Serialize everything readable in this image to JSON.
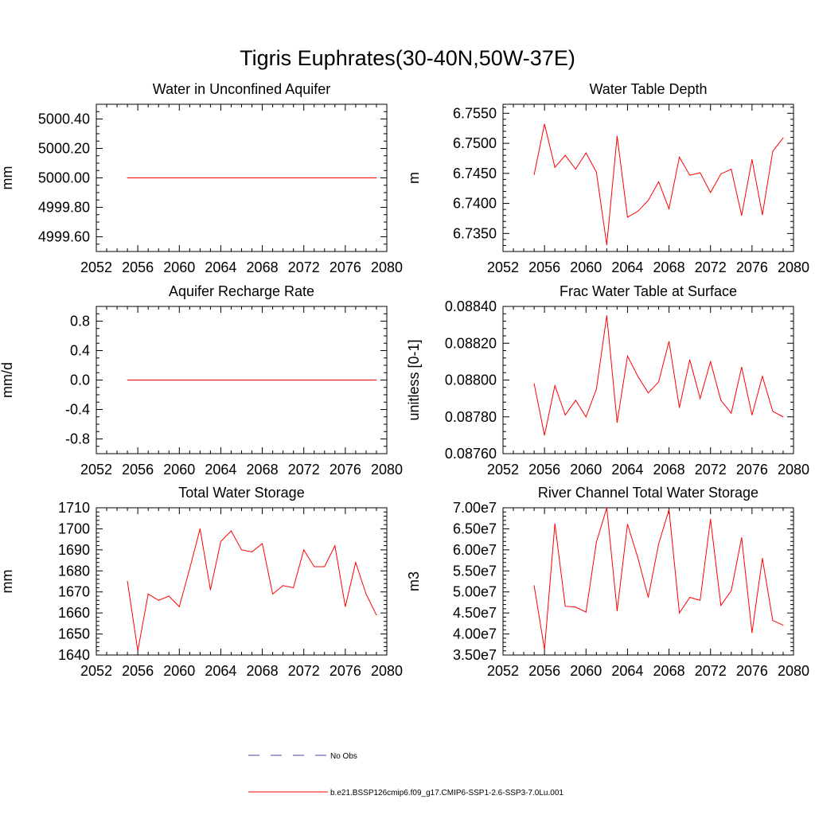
{
  "figure": {
    "title": "Tigris Euphrates(30-40N,50W-37E)",
    "line_color": "#ff0000",
    "obs_color": "#4444aa"
  },
  "legend": {
    "obs_label": "No Obs",
    "model_label": "b.e21.BSSP126cmip6.f09_g17.CMIP6-SSP1-2.6-SSP3-7.0Lu.001"
  },
  "chart_data": [
    {
      "type": "line",
      "title": "Water in Unconfined Aquifer",
      "ylabel": "mm",
      "xlabel": "",
      "xlim": [
        2052,
        2080
      ],
      "ylim": [
        4999.5,
        5000.5
      ],
      "xticks": [
        "2052",
        "2056",
        "2060",
        "2064",
        "2068",
        "2072",
        "2076",
        "2080"
      ],
      "yticks": [
        4999.6,
        4999.8,
        5000.0,
        5000.2,
        5000.4
      ],
      "yticklabels": [
        "4999.60",
        "4999.80",
        "5000.00",
        "5000.20",
        "5000.40"
      ],
      "yminor": 0.05,
      "x": [
        2055,
        2056,
        2057,
        2058,
        2059,
        2060,
        2061,
        2062,
        2063,
        2064,
        2065,
        2066,
        2067,
        2068,
        2069,
        2070,
        2071,
        2072,
        2073,
        2074,
        2075,
        2076,
        2077,
        2078,
        2079
      ],
      "series": [
        {
          "values": [
            5000,
            5000,
            5000,
            5000,
            5000,
            5000,
            5000,
            5000,
            5000,
            5000,
            5000,
            5000,
            5000,
            5000,
            5000,
            5000,
            5000,
            5000,
            5000,
            5000,
            5000,
            5000,
            5000,
            5000,
            5000
          ]
        }
      ]
    },
    {
      "type": "line",
      "title": "Water Table Depth",
      "ylabel": "m",
      "xlabel": "",
      "xlim": [
        2052,
        2080
      ],
      "ylim": [
        6.732,
        6.7565
      ],
      "xticks": [
        "2052",
        "2056",
        "2060",
        "2064",
        "2068",
        "2072",
        "2076",
        "2080"
      ],
      "yticks": [
        6.735,
        6.74,
        6.745,
        6.75,
        6.755
      ],
      "yticklabels": [
        "6.7350",
        "6.7400",
        "6.7450",
        "6.7500",
        "6.7550"
      ],
      "yminor": 0.001,
      "x": [
        2055,
        2056,
        2057,
        2058,
        2059,
        2060,
        2061,
        2062,
        2063,
        2064,
        2065,
        2066,
        2067,
        2068,
        2069,
        2070,
        2071,
        2072,
        2073,
        2074,
        2075,
        2076,
        2077,
        2078,
        2079
      ],
      "series": [
        {
          "values": [
            6.7448,
            6.7532,
            6.746,
            6.748,
            6.7457,
            6.7484,
            6.7452,
            6.7331,
            6.7512,
            6.7377,
            6.7387,
            6.7405,
            6.7436,
            6.7391,
            6.7477,
            6.7447,
            6.7451,
            6.7418,
            6.7449,
            6.7457,
            6.738,
            6.7473,
            6.7381,
            6.7487,
            6.7509
          ]
        }
      ]
    },
    {
      "type": "line",
      "title": "Aquifer Recharge Rate",
      "ylabel": "mm/d",
      "xlabel": "",
      "xlim": [
        2052,
        2080
      ],
      "ylim": [
        -1,
        1
      ],
      "xticks": [
        "2052",
        "2056",
        "2060",
        "2064",
        "2068",
        "2072",
        "2076",
        "2080"
      ],
      "yticks": [
        -0.8,
        -0.4,
        0,
        0.4,
        0.8
      ],
      "yticklabels": [
        "-0.8",
        "-0.4",
        "0.0",
        "0.4",
        "0.8"
      ],
      "yminor": 0.1,
      "x": [
        2055,
        2056,
        2057,
        2058,
        2059,
        2060,
        2061,
        2062,
        2063,
        2064,
        2065,
        2066,
        2067,
        2068,
        2069,
        2070,
        2071,
        2072,
        2073,
        2074,
        2075,
        2076,
        2077,
        2078,
        2079
      ],
      "series": [
        {
          "values": [
            0,
            0,
            0,
            0,
            0,
            0,
            0,
            0,
            0,
            0,
            0,
            0,
            0,
            0,
            0,
            0,
            0,
            0,
            0,
            0,
            0,
            0,
            0,
            0,
            0
          ]
        }
      ]
    },
    {
      "type": "line",
      "title": "Frac Water Table at Surface",
      "ylabel": "unitless [0-1]",
      "xlabel": "",
      "xlim": [
        2052,
        2080
      ],
      "ylim": [
        0.0876,
        0.0884
      ],
      "xticks": [
        "2052",
        "2056",
        "2060",
        "2064",
        "2068",
        "2072",
        "2076",
        "2080"
      ],
      "yticks": [
        0.0876,
        0.0878,
        0.088,
        0.0882,
        0.0884
      ],
      "yticklabels": [
        "0.08760",
        "0.08780",
        "0.08800",
        "0.08820",
        "0.08840"
      ],
      "yminor": 4e-05,
      "x": [
        2055,
        2056,
        2057,
        2058,
        2059,
        2060,
        2061,
        2062,
        2063,
        2064,
        2065,
        2066,
        2067,
        2068,
        2069,
        2070,
        2071,
        2072,
        2073,
        2074,
        2075,
        2076,
        2077,
        2078,
        2079
      ],
      "series": [
        {
          "values": [
            0.08798,
            0.0877,
            0.08797,
            0.08781,
            0.08789,
            0.0878,
            0.08795,
            0.08835,
            0.08777,
            0.08813,
            0.08802,
            0.08793,
            0.08799,
            0.08821,
            0.08785,
            0.08811,
            0.0879,
            0.0881,
            0.08789,
            0.08782,
            0.08807,
            0.08781,
            0.08802,
            0.08783,
            0.0878
          ]
        }
      ]
    },
    {
      "type": "line",
      "title": "Total Water Storage",
      "ylabel": "mm",
      "xlabel": "",
      "xlim": [
        2052,
        2080
      ],
      "ylim": [
        1640,
        1710
      ],
      "xticks": [
        "2052",
        "2056",
        "2060",
        "2064",
        "2068",
        "2072",
        "2076",
        "2080"
      ],
      "yticks": [
        1640,
        1650,
        1660,
        1670,
        1680,
        1690,
        1700,
        1710
      ],
      "yticklabels": [
        "1640",
        "1650",
        "1660",
        "1670",
        "1680",
        "1690",
        "1700",
        "1710"
      ],
      "yminor": 2,
      "x": [
        2055,
        2056,
        2057,
        2058,
        2059,
        2060,
        2061,
        2062,
        2063,
        2064,
        2065,
        2066,
        2067,
        2068,
        2069,
        2070,
        2071,
        2072,
        2073,
        2074,
        2075,
        2076,
        2077,
        2078,
        2079
      ],
      "series": [
        {
          "values": [
            1675,
            1642,
            1669,
            1666,
            1668,
            1663,
            1681,
            1700,
            1671,
            1694,
            1699,
            1690,
            1689,
            1693,
            1669,
            1673,
            1672,
            1690,
            1682,
            1682,
            1692,
            1663,
            1684,
            1669,
            1659
          ]
        }
      ]
    },
    {
      "type": "line",
      "title": "River Channel Total Water Storage",
      "ylabel": "m3",
      "xlabel": "",
      "xlim": [
        2052,
        2080
      ],
      "ylim": [
        35000000,
        70000000
      ],
      "xticks": [
        "2052",
        "2056",
        "2060",
        "2064",
        "2068",
        "2072",
        "2076",
        "2080"
      ],
      "yticks": [
        35000000,
        40000000,
        45000000,
        50000000,
        55000000,
        60000000,
        65000000,
        70000000
      ],
      "yticklabels": [
        "3.50e7",
        "4.00e7",
        "4.50e7",
        "5.00e7",
        "5.50e7",
        "6.00e7",
        "6.50e7",
        "7.00e7"
      ],
      "yminor": 1000000,
      "x": [
        2055,
        2056,
        2057,
        2058,
        2059,
        2060,
        2061,
        2062,
        2063,
        2064,
        2065,
        2066,
        2067,
        2068,
        2069,
        2070,
        2071,
        2072,
        2073,
        2074,
        2075,
        2076,
        2077,
        2078,
        2079
      ],
      "series": [
        {
          "values": [
            51500000,
            36300000,
            66200000,
            46600000,
            46400000,
            45200000,
            61800000,
            70000000,
            45500000,
            66100000,
            58100000,
            48700000,
            61400000,
            69600000,
            45000000,
            48700000,
            48000000,
            67300000,
            46800000,
            50300000,
            62900000,
            40300000,
            58000000,
            43200000,
            42100000
          ]
        }
      ]
    }
  ]
}
